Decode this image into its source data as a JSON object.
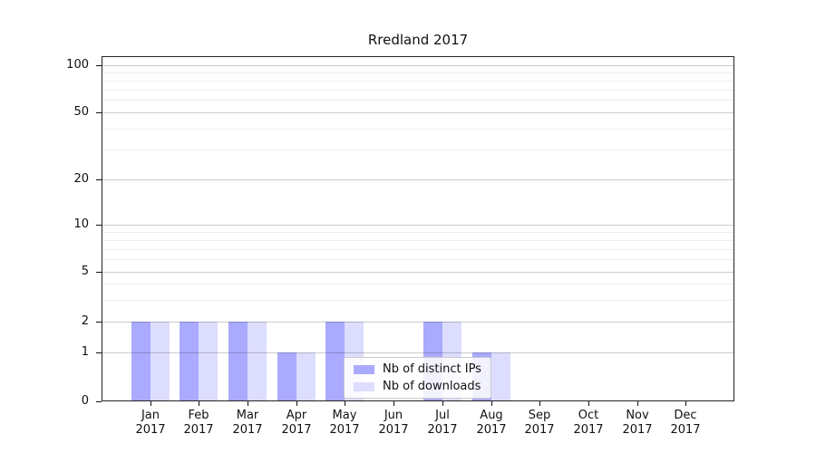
{
  "chart_data": {
    "type": "bar",
    "title": "Rredland 2017",
    "categories": [
      "Jan 2017",
      "Feb 2017",
      "Mar 2017",
      "Apr 2017",
      "May 2017",
      "Jun 2017",
      "Jul 2017",
      "Aug 2017",
      "Sep 2017",
      "Oct 2017",
      "Nov 2017",
      "Dec 2017"
    ],
    "category_months": [
      "Jan",
      "Feb",
      "Mar",
      "Apr",
      "May",
      "Jun",
      "Jul",
      "Aug",
      "Sep",
      "Oct",
      "Nov",
      "Dec"
    ],
    "category_year": "2017",
    "y_axis": {
      "scale": "symlog",
      "ticks": [
        0,
        1,
        2,
        5,
        10,
        20,
        50,
        100
      ],
      "minor_gridlines": [
        3,
        4,
        6,
        7,
        8,
        9,
        30,
        40,
        60,
        70,
        80,
        90
      ]
    },
    "series": [
      {
        "name": "Nb of distinct IPs",
        "color": "#aaaaff",
        "values": [
          2,
          2,
          2,
          1,
          2,
          0,
          2,
          1,
          0,
          0,
          0,
          0
        ]
      },
      {
        "name": "Nb of downloads",
        "color": "#ddddff",
        "values": [
          2,
          2,
          2,
          1,
          2,
          0,
          2,
          1,
          0,
          0,
          0,
          0
        ]
      }
    ],
    "legend": {
      "position": "lower-center",
      "entries": [
        "Nb of distinct IPs",
        "Nb of downloads"
      ]
    },
    "grid": "horizontal major and minor",
    "xlabel": "",
    "ylabel": ""
  },
  "colors": {
    "series_dark": "#aaaaff",
    "series_light": "#ddddff",
    "grid_major": "#c9c9c9",
    "grid_minor": "#ededed",
    "spine": "#222222",
    "text": "#111111",
    "legend_border": "#cccccc",
    "background": "#ffffff"
  }
}
